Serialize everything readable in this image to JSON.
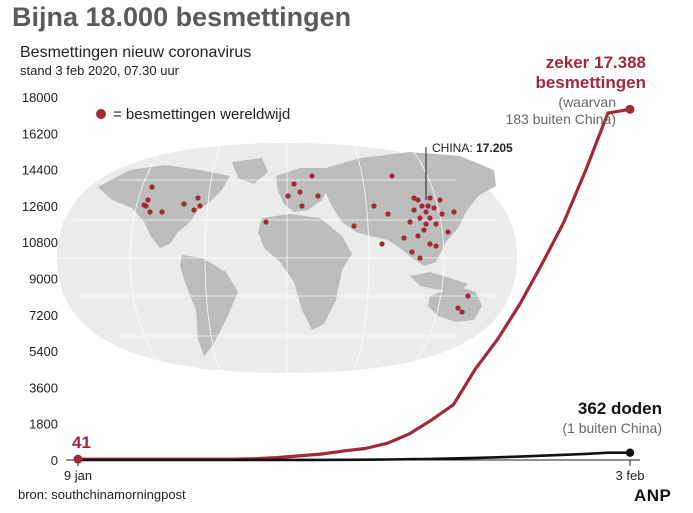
{
  "title": "Bijna 18.000 besmettingen",
  "subtitle": "Besmettingen nieuw coronavirus",
  "timestamp": "stand 3 feb 2020, 07.30 uur",
  "source": "bron: southchinamorningpost",
  "logo": "ANP",
  "colors": {
    "infections": "#a3283a",
    "deaths": "#111111",
    "map_land": "#bdbdbd",
    "map_bg": "#ebebeb",
    "title": "#5b5b5b"
  },
  "legend": {
    "marker": "●",
    "label": "= besmettingen wereldwijd"
  },
  "map": {
    "china_label": "CHINA:",
    "china_value": "17.205"
  },
  "annotations": {
    "start_value": "41",
    "infections_line1": "zeker 17.388",
    "infections_line2": "besmettingen",
    "infections_note1": "(waarvan",
    "infections_note2": "183 buiten China)",
    "deaths_line1": "362 doden",
    "deaths_note": "(1 buiten China)"
  },
  "chart_data": {
    "type": "line",
    "ylim": [
      0,
      18000
    ],
    "yticks": [
      "0",
      "1800",
      "3600",
      "5400",
      "7200",
      "9000",
      "10800",
      "12600",
      "14400",
      "16200",
      "18000"
    ],
    "ytick_values": [
      0,
      1800,
      3600,
      5400,
      7200,
      9000,
      10800,
      12600,
      14400,
      16200,
      18000
    ],
    "xtick_labels": [
      "9 jan",
      "3 feb"
    ],
    "x": [
      "9 jan",
      "10 jan",
      "11 jan",
      "12 jan",
      "13 jan",
      "14 jan",
      "15 jan",
      "16 jan",
      "17 jan",
      "18 jan",
      "19 jan",
      "20 jan",
      "21 jan",
      "22 jan",
      "23 jan",
      "24 jan",
      "25 jan",
      "26 jan",
      "27 jan",
      "28 jan",
      "29 jan",
      "30 jan",
      "31 jan",
      "1 feb",
      "2 feb",
      "3 feb"
    ],
    "series": [
      {
        "name": "besmettingen",
        "values": [
          41,
          41,
          41,
          41,
          41,
          41,
          41,
          41,
          62,
          121,
          201,
          291,
          440,
          571,
          830,
          1287,
          1975,
          2744,
          4515,
          5974,
          7711,
          9692,
          11791,
          14380,
          17205,
          17388
        ]
      },
      {
        "name": "doden",
        "values": [
          1,
          1,
          1,
          1,
          1,
          1,
          2,
          2,
          2,
          3,
          3,
          6,
          9,
          17,
          25,
          41,
          56,
          80,
          106,
          132,
          170,
          213,
          259,
          304,
          361,
          362
        ]
      }
    ]
  }
}
